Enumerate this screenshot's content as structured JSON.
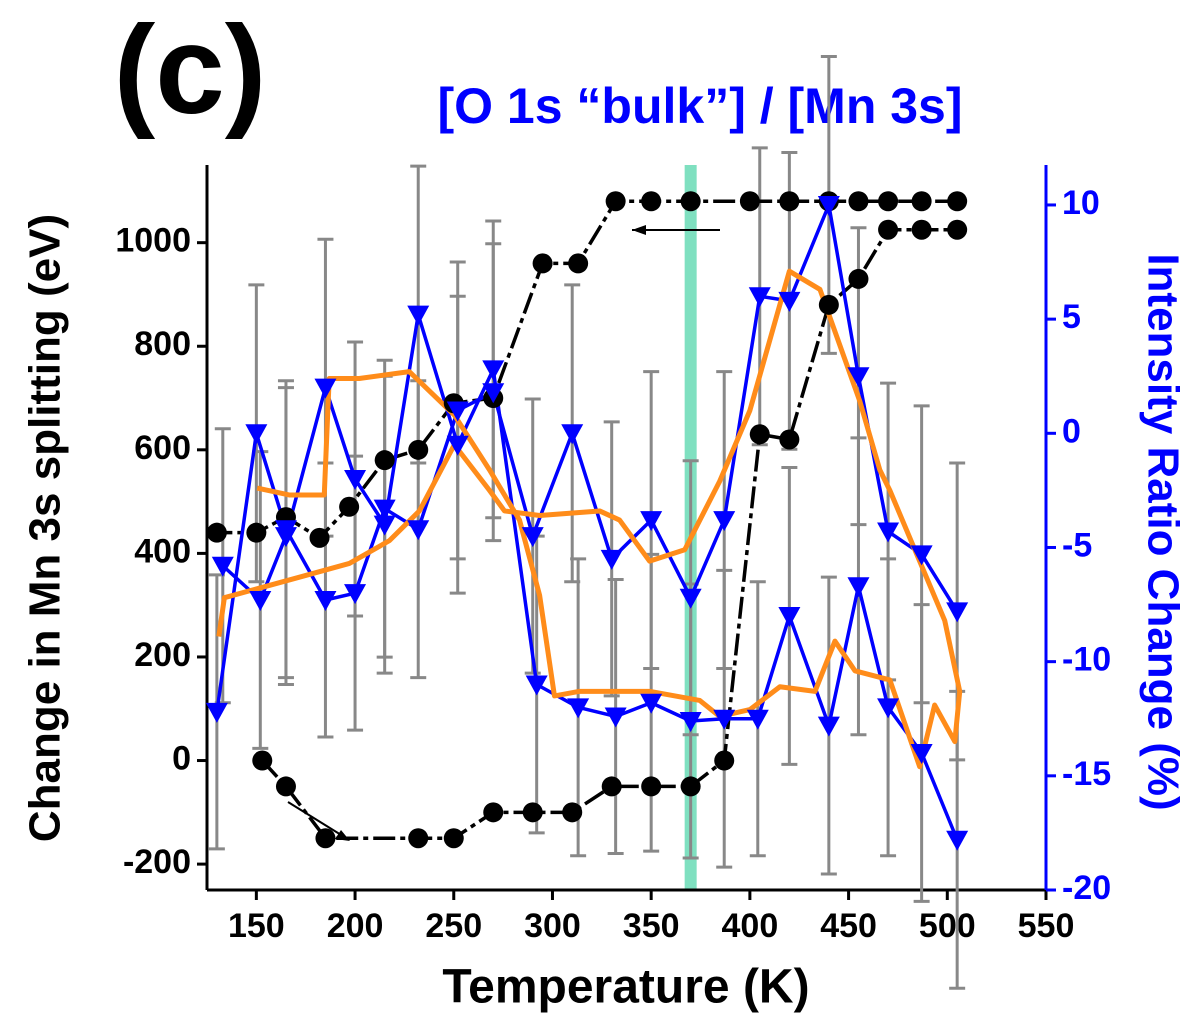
{
  "chart_data": {
    "type": "line",
    "panel_label": "(c)",
    "title": "[O 1s “bulk”] / [Mn 3s]",
    "xlabel": "Temperature (K)",
    "ylabel": "Change in Mn 3s splitting (eV)",
    "y2label": "Intensity Ratio Change (%)",
    "xlim": [
      125,
      550
    ],
    "xticks": [
      150,
      200,
      250,
      300,
      350,
      400,
      450,
      500,
      550
    ],
    "ylim": [
      -250,
      1150
    ],
    "yticks": [
      -200,
      0,
      200,
      400,
      600,
      800,
      1000
    ],
    "y2lim": [
      -20,
      11.75
    ],
    "y2ticks": [
      -20,
      -15,
      -10,
      -5,
      0,
      5,
      10
    ],
    "vline": 370,
    "vline_color": "#7fe0c0",
    "series": [
      {
        "color": "#000000",
        "marker": "circle",
        "axis": "y",
        "x": [
          153,
          165,
          185,
          232,
          250,
          270,
          290,
          310,
          330,
          350,
          370,
          387,
          405,
          420,
          440,
          455,
          470,
          487,
          505
        ],
        "values": [
          0,
          -50,
          -150,
          -150,
          -150,
          -100,
          -100,
          -100,
          -50,
          -50,
          -50,
          0,
          630,
          620,
          880,
          930,
          1025,
          1025,
          1025
        ]
      },
      {
        "color": "#000000",
        "marker": "circle",
        "axis": "y",
        "x": [
          505,
          487,
          470,
          455,
          440,
          420,
          400,
          370,
          350,
          332,
          313,
          295,
          270,
          250,
          232,
          215,
          197,
          182,
          165,
          150,
          130
        ],
        "values": [
          1080,
          1080,
          1080,
          1080,
          1080,
          1080,
          1080,
          1080,
          1080,
          1080,
          960,
          960,
          700,
          690,
          600,
          580,
          490,
          430,
          470,
          440,
          440
        ]
      },
      {
        "color": "#0000ff",
        "marker": "triangle",
        "axis": "y2",
        "x": [
          130,
          150,
          165,
          185,
          200,
          215,
          232,
          252,
          270,
          290,
          310,
          330,
          350,
          370,
          387,
          405,
          420,
          440,
          455,
          470,
          487,
          505
        ],
        "values": [
          -12.2,
          0,
          -4.2,
          -7.3,
          -7,
          -3.3,
          -4.2,
          1,
          1.8,
          -4.5,
          0,
          -5.5,
          -3.8,
          -7.2,
          -3.8,
          6,
          5.8,
          10,
          2.5,
          -4.3,
          -5.3,
          -7.8
        ],
        "errors": [
          6,
          6.5,
          6.5,
          6,
          6,
          6.5,
          6.5,
          6.5,
          6.5,
          6,
          6.5,
          6,
          6.5,
          6,
          6.5,
          6.5,
          6.5,
          6.5,
          6.5,
          6.5,
          6.5,
          6.5
        ]
      },
      {
        "color": "#0000ff",
        "marker": "triangle",
        "axis": "y2",
        "x": [
          133,
          152,
          165,
          185,
          200,
          215,
          232,
          252,
          270,
          292,
          313,
          332,
          350,
          370,
          387,
          404,
          420,
          440,
          455,
          470,
          487,
          505
        ],
        "values": [
          -5.8,
          -7.3,
          -4.5,
          2,
          -2,
          -4,
          5.2,
          -0.5,
          2.8,
          -11,
          -12,
          -12.4,
          -11.8,
          -12.6,
          -12.5,
          -12.5,
          -8,
          -12.8,
          -6.7,
          -12,
          -14,
          -17.8
        ],
        "errors": [
          6,
          6.5,
          6.5,
          6.5,
          6,
          6.5,
          6.5,
          6.5,
          6.5,
          6.5,
          6.5,
          6,
          6.5,
          6,
          6.5,
          6,
          6.5,
          6.5,
          6.5,
          6.5,
          6.5,
          6.5
        ]
      },
      {
        "color": "#ff8c1a",
        "marker": "none",
        "axis": "y2",
        "x": [
          131,
          133.8,
          171.8,
          197.1,
          217.4,
          232.6,
          250.3,
          268.1,
          275.7,
          293.5,
          323.9,
          334,
          349.2,
          367,
          384.7,
          400,
          420,
          435.5,
          455.7,
          465.8,
          470.9,
          486,
          498.7,
          506.3,
          503.8,
          493.6,
          486,
          470.9,
          453.2,
          443.1,
          433,
          415.2,
          400,
          384.7,
          374.6,
          349.2,
          313.7,
          301,
          293.5,
          283.3,
          268.1,
          250.3,
          227.5,
          202.1,
          186.9,
          184.4,
          166.6,
          150.4
        ],
        "values": [
          -8.9,
          -7.2,
          -6.3,
          -5.7,
          -4.7,
          -3.4,
          -0.5,
          -2.5,
          -3.4,
          -3.6,
          -3.4,
          -3.8,
          -5.6,
          -5.1,
          -2.1,
          1,
          7.1,
          6.3,
          1.4,
          -1.6,
          -2.5,
          -5.6,
          -8.2,
          -11.3,
          -13.5,
          -11.9,
          -14.6,
          -10.8,
          -10.4,
          -9.1,
          -11.3,
          -11.1,
          -12.1,
          -12.4,
          -11.7,
          -11.3,
          -11.3,
          -11.5,
          -7.1,
          -3.8,
          -1.6,
          0.8,
          2.7,
          2.4,
          2.4,
          -2.7,
          -2.7,
          -2.4
        ]
      }
    ]
  }
}
